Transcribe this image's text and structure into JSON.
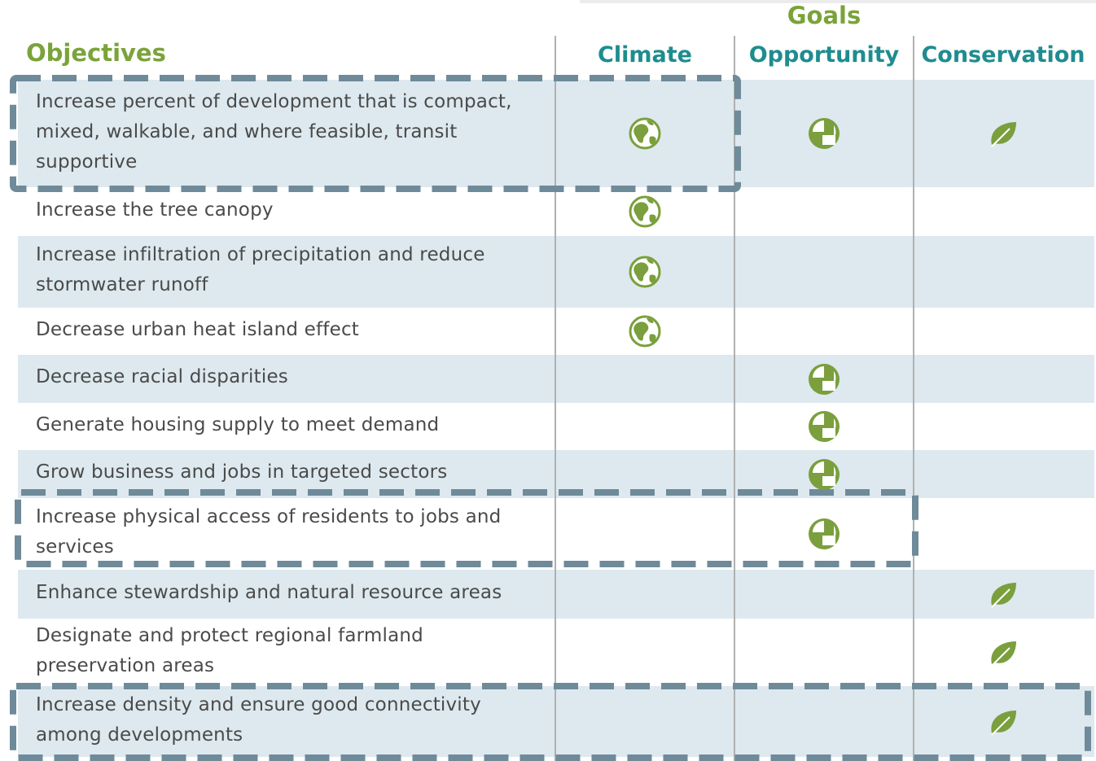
{
  "header": {
    "goals_title": "Goals",
    "objectives_title": "Objectives",
    "goals": [
      "Climate",
      "Opportunity",
      "Conservation"
    ]
  },
  "table": {
    "rows": [
      {
        "objective": [
          "Increase percent of development that is compact,",
          "mixed, walkable, and where feasible, transit",
          "supportive"
        ],
        "marks": [
          true,
          true,
          true
        ]
      },
      {
        "objective": [
          "Increase the tree canopy"
        ],
        "marks": [
          true,
          false,
          false
        ]
      },
      {
        "objective": [
          "Increase infiltration of precipitation and reduce",
          "stormwater runoff"
        ],
        "marks": [
          true,
          false,
          false
        ]
      },
      {
        "objective": [
          "Decrease urban heat island effect"
        ],
        "marks": [
          true,
          false,
          false
        ]
      },
      {
        "objective": [
          "Decrease racial disparities"
        ],
        "marks": [
          false,
          true,
          false
        ]
      },
      {
        "objective": [
          "Generate housing supply to meet demand"
        ],
        "marks": [
          false,
          true,
          false
        ]
      },
      {
        "objective": [
          "Grow business and jobs in targeted sectors"
        ],
        "marks": [
          false,
          true,
          false
        ]
      },
      {
        "objective": [
          "Increase physical access of residents to jobs and",
          "services"
        ],
        "marks": [
          false,
          true,
          false
        ]
      },
      {
        "objective": [
          "Enhance stewardship and natural resource areas"
        ],
        "marks": [
          false,
          false,
          true
        ]
      },
      {
        "objective": [
          "Designate and protect regional farmland",
          "preservation areas"
        ],
        "marks": [
          false,
          false,
          true
        ]
      },
      {
        "objective": [
          "Increase density and ensure good connectivity",
          "among developments"
        ],
        "marks": [
          false,
          false,
          true
        ]
      }
    ]
  }
}
